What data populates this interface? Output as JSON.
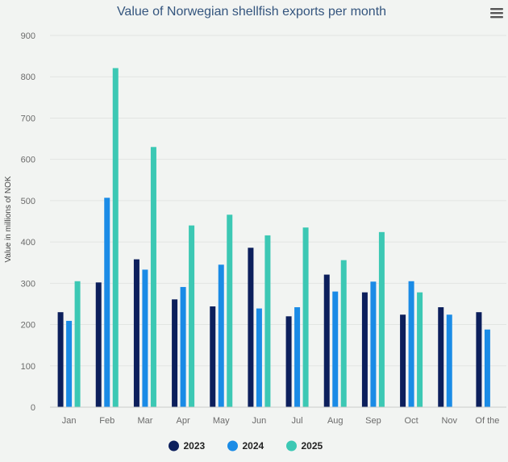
{
  "chart_data": {
    "type": "bar",
    "title": "Value of Norwegian shellfish exports per month",
    "ylabel": "Value in millions of NOK",
    "xlabel": "",
    "ylim": [
      0,
      900
    ],
    "yticks": [
      0,
      100,
      200,
      300,
      400,
      500,
      600,
      700,
      800,
      900
    ],
    "categories": [
      "Jan",
      "Feb",
      "Mar",
      "Apr",
      "May",
      "Jun",
      "Jul",
      "Aug",
      "Sep",
      "Oct",
      "Nov",
      "Of the"
    ],
    "series": [
      {
        "name": "2023",
        "color": "#0c1f5c",
        "values": [
          230,
          302,
          358,
          261,
          244,
          386,
          220,
          321,
          278,
          224,
          242,
          230
        ]
      },
      {
        "name": "2024",
        "color": "#1a8be6",
        "values": [
          209,
          507,
          333,
          291,
          345,
          239,
          242,
          280,
          304,
          305,
          224,
          188
        ]
      },
      {
        "name": "2025",
        "color": "#3cc8b4",
        "values": [
          305,
          821,
          630,
          440,
          466,
          416,
          435,
          356,
          424,
          278,
          null,
          null
        ]
      }
    ],
    "grid": true,
    "legend_position": "bottom-center"
  },
  "menu": {
    "icon": "hamburger-menu-icon",
    "glyph": "≡"
  }
}
